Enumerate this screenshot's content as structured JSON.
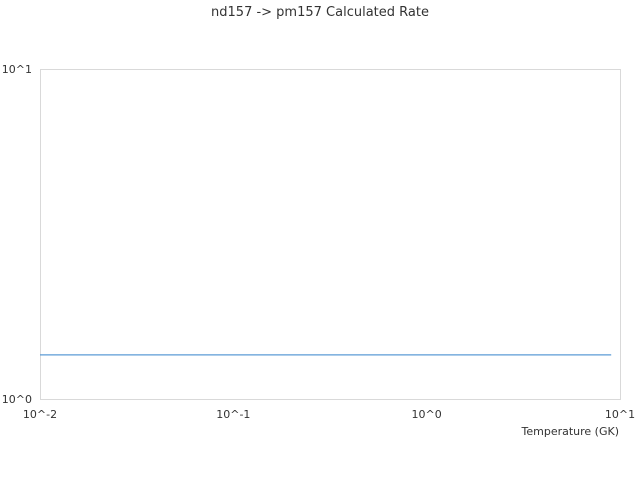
{
  "chart_data": {
    "type": "line",
    "title": "nd157 -> pm157 Calculated Rate",
    "xlabel": "Temperature (GK)",
    "ylabel": "",
    "xscale": "log",
    "yscale": "log",
    "xlim": [
      0.01,
      10
    ],
    "ylim": [
      1,
      10
    ],
    "xticks": [
      "10^-2",
      "10^-1",
      "10^0",
      "10^1"
    ],
    "yticks": [
      "10^0",
      "10^1"
    ],
    "grid": false,
    "series": [
      {
        "color": "#5b9bd5",
        "x": [
          0.01,
          9
        ],
        "y": [
          1.36,
          1.36
        ]
      }
    ]
  }
}
